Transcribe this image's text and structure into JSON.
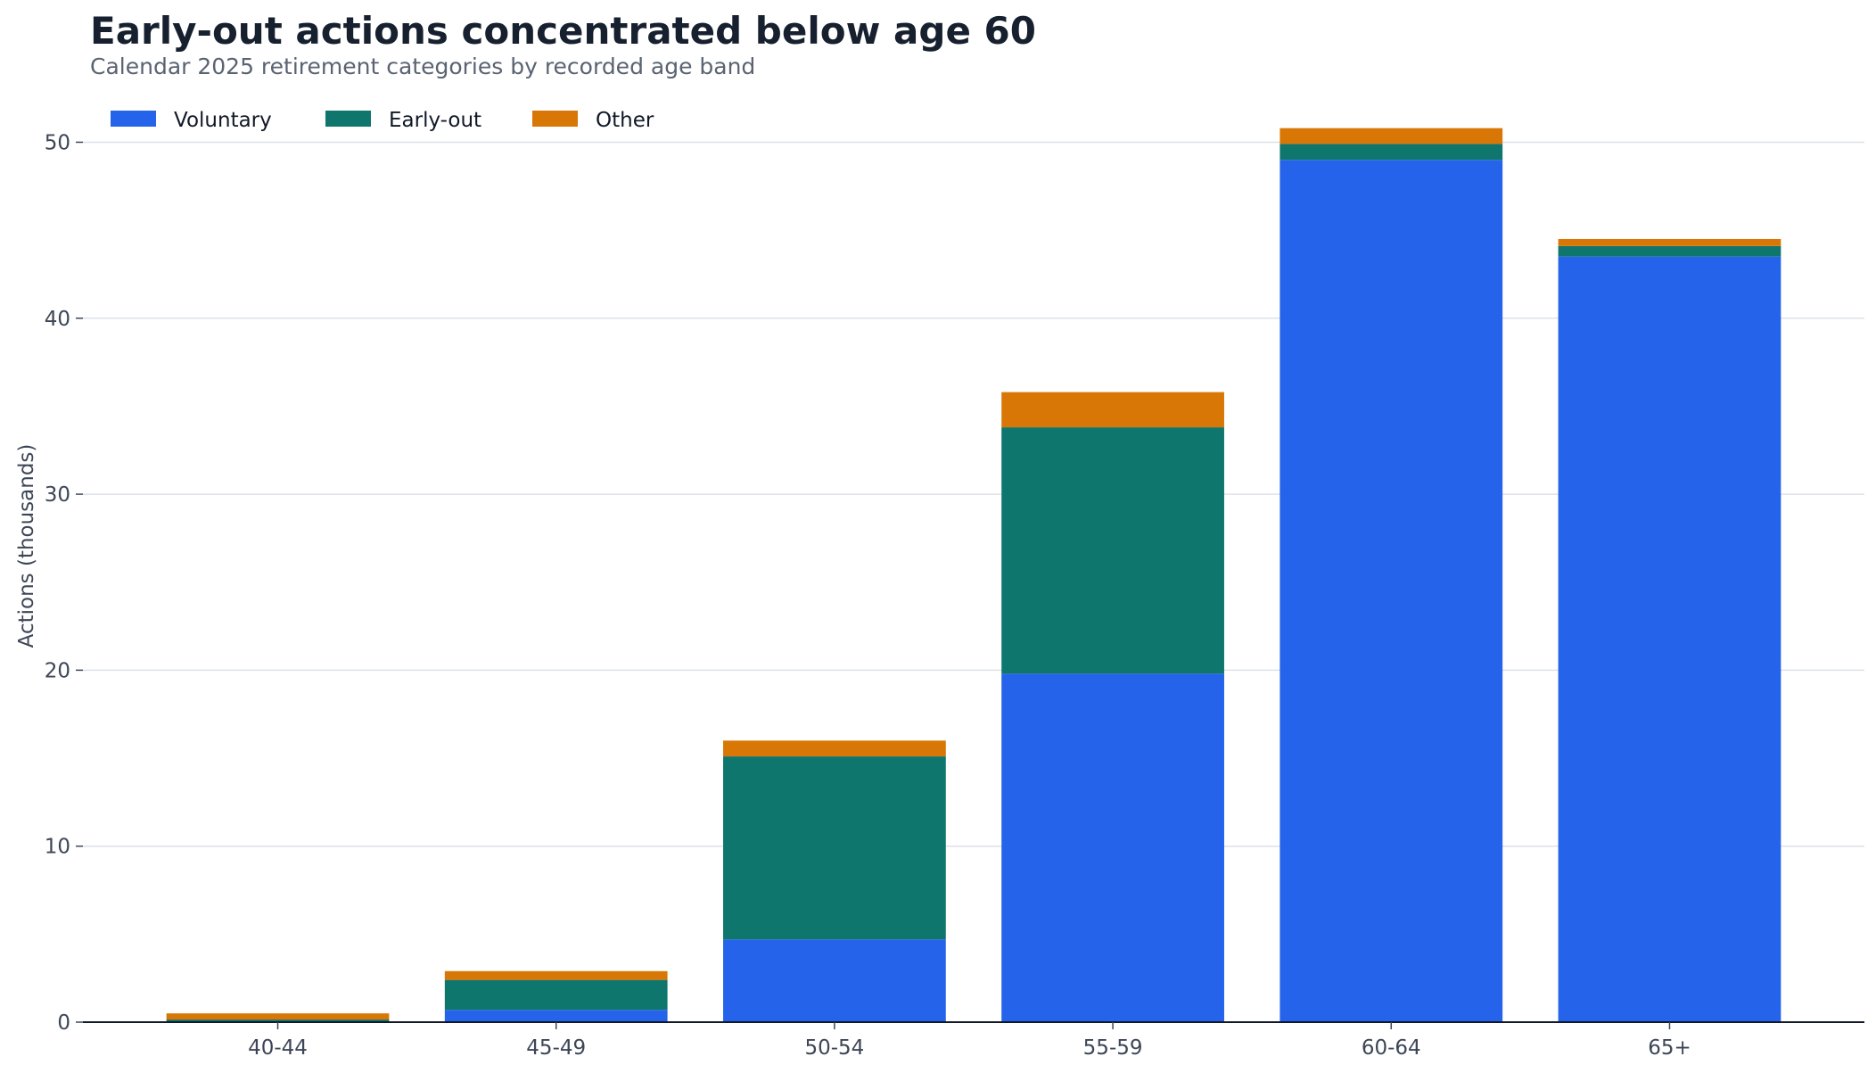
{
  "chart_data": {
    "type": "bar",
    "stacked": true,
    "title": "Early-out actions concentrated below age 60",
    "subtitle": "Calendar 2025 retirement categories by recorded age band",
    "xlabel": "",
    "ylabel": "Actions (thousands)",
    "ylim": [
      0,
      52
    ],
    "yticks": [
      0,
      10,
      20,
      30,
      40,
      50
    ],
    "grid": true,
    "legend_position": "top-left",
    "categories": [
      "40-44",
      "45-49",
      "50-54",
      "55-59",
      "60-64",
      "65+"
    ],
    "series": [
      {
        "name": "Voluntary",
        "color": "#2563eb",
        "values": [
          0.05,
          0.7,
          4.7,
          19.8,
          49.0,
          43.5
        ]
      },
      {
        "name": "Early-out",
        "color": "#0f766e",
        "values": [
          0.1,
          1.7,
          10.4,
          14.0,
          0.9,
          0.6
        ]
      },
      {
        "name": "Other",
        "color": "#d97706",
        "values": [
          0.35,
          0.5,
          0.9,
          2.0,
          0.9,
          0.4
        ]
      }
    ]
  }
}
